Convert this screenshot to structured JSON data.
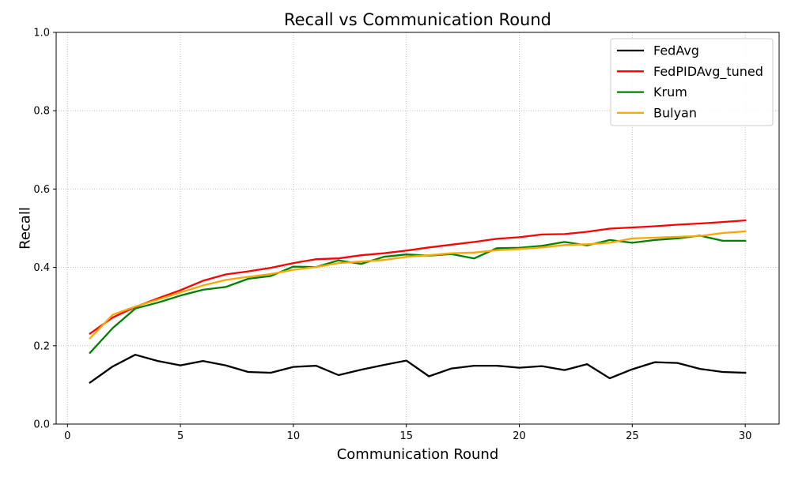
{
  "chart_data": {
    "type": "line",
    "title": "Recall vs Communication Round",
    "xlabel": "Communication Round",
    "ylabel": "Recall",
    "xlim": [
      -0.5,
      31.5
    ],
    "ylim": [
      0.0,
      1.0
    ],
    "xticks": [
      0,
      5,
      10,
      15,
      20,
      25,
      30
    ],
    "yticks": [
      0.0,
      0.2,
      0.4,
      0.6,
      0.8,
      1.0
    ],
    "xtick_labels": [
      "0",
      "5",
      "10",
      "15",
      "20",
      "25",
      "30"
    ],
    "ytick_labels": [
      "0.0",
      "0.2",
      "0.4",
      "0.6",
      "0.8",
      "1.0"
    ],
    "grid": true,
    "legend_position": "top-right",
    "x": [
      1,
      2,
      3,
      4,
      5,
      6,
      7,
      8,
      9,
      10,
      11,
      12,
      13,
      14,
      15,
      16,
      17,
      18,
      19,
      20,
      21,
      22,
      23,
      24,
      25,
      26,
      27,
      28,
      29,
      30
    ],
    "series": [
      {
        "name": "FedAvg",
        "color": "#000000",
        "values": [
          0.106,
          0.147,
          0.177,
          0.161,
          0.15,
          0.161,
          0.15,
          0.133,
          0.131,
          0.146,
          0.149,
          0.125,
          0.139,
          0.151,
          0.162,
          0.122,
          0.142,
          0.149,
          0.149,
          0.144,
          0.148,
          0.138,
          0.153,
          0.117,
          0.14,
          0.158,
          0.156,
          0.141,
          0.133,
          0.131
        ]
      },
      {
        "name": "FedPIDAvg_tuned",
        "color": "#ff0000",
        "values": [
          0.231,
          0.272,
          0.299,
          0.321,
          0.342,
          0.366,
          0.382,
          0.39,
          0.399,
          0.411,
          0.421,
          0.423,
          0.431,
          0.436,
          0.443,
          0.451,
          0.458,
          0.465,
          0.473,
          0.477,
          0.484,
          0.485,
          0.491,
          0.499,
          0.502,
          0.505,
          0.509,
          0.512,
          0.516,
          0.52
        ]
      },
      {
        "name": "Krum",
        "color": "#008000",
        "values": [
          0.182,
          0.245,
          0.295,
          0.31,
          0.328,
          0.343,
          0.35,
          0.371,
          0.378,
          0.402,
          0.401,
          0.418,
          0.409,
          0.427,
          0.433,
          0.43,
          0.434,
          0.423,
          0.449,
          0.45,
          0.455,
          0.465,
          0.456,
          0.47,
          0.463,
          0.47,
          0.474,
          0.481,
          0.468,
          0.468
        ]
      },
      {
        "name": "Bulyan",
        "color": "#ffa500",
        "values": [
          0.219,
          0.279,
          0.3,
          0.318,
          0.336,
          0.354,
          0.368,
          0.376,
          0.383,
          0.394,
          0.401,
          0.411,
          0.415,
          0.419,
          0.427,
          0.431,
          0.436,
          0.438,
          0.444,
          0.447,
          0.451,
          0.457,
          0.459,
          0.463,
          0.474,
          0.476,
          0.478,
          0.48,
          0.488,
          0.492
        ]
      }
    ]
  }
}
